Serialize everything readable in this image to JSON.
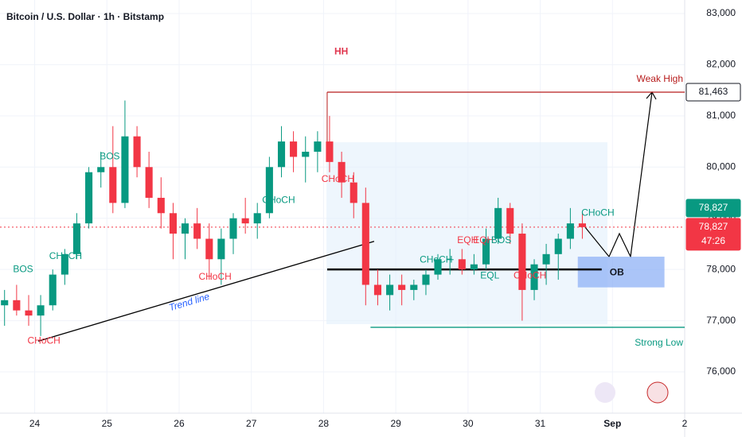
{
  "chart_data": {
    "type": "candlestick",
    "title": "Bitcoin / U.S. Dollar · 1h · Bitstamp",
    "x": [
      23.583,
      23.75,
      23.917,
      24.083,
      24.25,
      24.417,
      24.583,
      24.75,
      24.917,
      25.083,
      25.25,
      25.417,
      25.583,
      25.75,
      25.917,
      26.083,
      26.25,
      26.417,
      26.583,
      26.75,
      26.917,
      27.083,
      27.25,
      27.417,
      27.583,
      27.75,
      27.917,
      28.083,
      28.25,
      28.417,
      28.583,
      28.75,
      28.917,
      29.083,
      29.25,
      29.417,
      29.583,
      29.75,
      29.917,
      30.083,
      30.25,
      30.417,
      30.583,
      30.75,
      30.917,
      31.083,
      31.25,
      31.417,
      31.583
    ],
    "open": [
      77300,
      77400,
      77200,
      77100,
      77300,
      77900,
      78300,
      78900,
      79900,
      80000,
      79300,
      80600,
      80000,
      79400,
      79100,
      78700,
      78900,
      78600,
      78200,
      78600,
      79000,
      78900,
      79100,
      80000,
      80500,
      80200,
      80300,
      80500,
      80100,
      79700,
      79300,
      77700,
      77500,
      77700,
      77600,
      77700,
      77900,
      78200,
      78200,
      78000,
      78100,
      78600,
      79200,
      78700,
      77600,
      78100,
      78300,
      78600,
      78900
    ],
    "high": [
      77600,
      77700,
      77500,
      77500,
      78000,
      78400,
      79100,
      80000,
      80300,
      80800,
      81300,
      80800,
      80300,
      79800,
      79300,
      79000,
      79200,
      78900,
      78800,
      79100,
      79400,
      79300,
      80200,
      80800,
      80700,
      80600,
      80700,
      81000,
      80300,
      79900,
      79600,
      78000,
      77900,
      77900,
      77800,
      78000,
      78300,
      78400,
      78400,
      78300,
      78800,
      79400,
      79300,
      78900,
      78200,
      78500,
      78700,
      79200,
      79100
    ],
    "low": [
      76900,
      77100,
      76900,
      76700,
      77200,
      77700,
      78200,
      78800,
      79600,
      79100,
      79200,
      79800,
      79200,
      78800,
      78200,
      78200,
      78400,
      77800,
      77700,
      78300,
      78700,
      78600,
      79000,
      79800,
      79900,
      79700,
      79900,
      79900,
      79400,
      79000,
      77300,
      77300,
      77200,
      77300,
      77400,
      77500,
      77800,
      77900,
      77900,
      77900,
      78000,
      78500,
      78500,
      77000,
      77400,
      77700,
      77800,
      78400,
      78600
    ],
    "close": [
      77400,
      77200,
      77100,
      77300,
      77900,
      78300,
      78900,
      79900,
      80000,
      79300,
      80600,
      80000,
      79400,
      79100,
      78700,
      78900,
      78600,
      78200,
      78600,
      79000,
      78900,
      79100,
      80000,
      80500,
      80200,
      80300,
      80500,
      80100,
      79700,
      79300,
      77700,
      77500,
      77700,
      77600,
      77700,
      77900,
      78200,
      78200,
      78000,
      78100,
      78600,
      79200,
      78700,
      77600,
      78100,
      78300,
      78600,
      78900,
      78827
    ],
    "up_color": "#089981",
    "down_color": "#f23645",
    "xlim": [
      23.52,
      33
    ],
    "xticks": [
      24,
      25,
      26,
      27,
      28,
      29,
      30,
      31,
      {
        "value": 32,
        "label": "Sep"
      },
      {
        "value": 33,
        "label": "2"
      }
    ],
    "ylim": [
      75193,
      83264
    ],
    "yticks": [
      {
        "value": 76000,
        "label": "76,000"
      },
      {
        "value": 77000,
        "label": "77,000"
      },
      {
        "value": 78000,
        "label": "78,000"
      },
      {
        "value": 79000,
        "label": "79,000"
      },
      {
        "value": 80000,
        "label": "80,000"
      },
      {
        "value": 81000,
        "label": "81,000"
      },
      {
        "value": 82000,
        "label": "82,000"
      },
      {
        "value": 83000,
        "label": "83,000"
      }
    ],
    "grid": true,
    "levels": [
      {
        "label": "Weak High",
        "value": 81463,
        "start": 28.05,
        "color": "#b71c1c"
      },
      {
        "label": "Strong Low",
        "value": 76870,
        "start": 28.65,
        "color": "#089981"
      }
    ],
    "trend_line": {
      "label": "Trend line",
      "start": [
        24.05,
        76600
      ],
      "end": [
        28.7,
        78550
      ]
    },
    "zone": {
      "label": "OB",
      "low": 77650,
      "high": 78250,
      "start": 31.52,
      "end": 32.72,
      "line": 78000
    },
    "price_labels": [
      {
        "value": 81463,
        "label": "81,463"
      },
      {
        "value": 78827,
        "label": "78,827",
        "color": "#089981"
      },
      {
        "value": 78827,
        "label": "78,827",
        "color": "#f23645"
      }
    ],
    "countdown": "47:26",
    "annotations": [
      {
        "text": "HH",
        "x": 28.15,
        "y": 82250,
        "color": "#e0374f"
      },
      {
        "text": "BOS",
        "x": 24.9,
        "y": 80200,
        "color": "#089981"
      },
      {
        "text": "CHoCH",
        "x": 24.2,
        "y": 78250,
        "color": "#089981"
      },
      {
        "text": "BOS",
        "x": 23.7,
        "y": 78000,
        "color": "#089981"
      },
      {
        "text": "CHoCH",
        "x": 23.9,
        "y": 76600,
        "color": "#f23645"
      },
      {
        "text": "CHoCH",
        "x": 27.15,
        "y": 79350,
        "color": "#089981"
      },
      {
        "text": "CHoCH",
        "x": 27.97,
        "y": 79760,
        "color": "#f23645"
      },
      {
        "text": "CHoCH",
        "x": 26.27,
        "y": 77850,
        "color": "#f23645"
      },
      {
        "text": "CHoCH",
        "x": 29.33,
        "y": 78180,
        "color": "#089981"
      },
      {
        "text": "EQH",
        "x": 29.85,
        "y": 78560,
        "color": "#f23645"
      },
      {
        "text": "EQH",
        "x": 30.07,
        "y": 78560,
        "color": "#f23645"
      },
      {
        "text": "BOS",
        "x": 30.32,
        "y": 78560,
        "color": "#089981"
      },
      {
        "text": "EQL",
        "x": 30.17,
        "y": 77870,
        "color": "#089981"
      },
      {
        "text": "CHoCH",
        "x": 30.63,
        "y": 77870,
        "color": "#f23645"
      },
      {
        "text": "CHoCH",
        "x": 31.57,
        "y": 79100,
        "color": "#089981"
      }
    ]
  }
}
